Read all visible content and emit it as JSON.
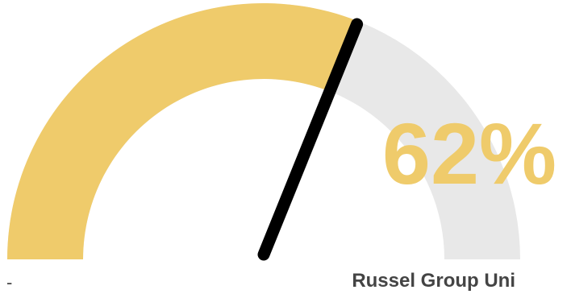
{
  "gauge": {
    "value": 62,
    "max": 100,
    "display_value": "62%",
    "min_label": "-",
    "label": "Russel Group Uni",
    "colors": {
      "fill": "#efcb6b",
      "track": "#e8e8e8",
      "needle": "#000000",
      "value_text": "#efcb6b",
      "label_text": "#444444"
    }
  }
}
